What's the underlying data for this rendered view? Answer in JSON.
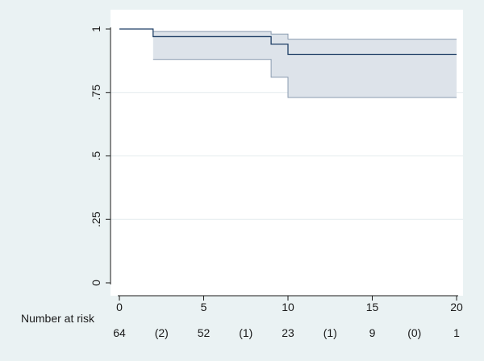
{
  "chart_data": {
    "type": "line",
    "title": "",
    "xlabel": "",
    "ylabel": "",
    "xlim": [
      0,
      20
    ],
    "ylim": [
      0,
      1
    ],
    "x_ticks": [
      "0",
      "5",
      "10",
      "15",
      "20"
    ],
    "y_ticks": [
      "0",
      ".25",
      ".5",
      ".75",
      "1"
    ],
    "grid": true,
    "survival_steps": {
      "x": [
        0,
        2,
        9,
        10,
        20
      ],
      "y": [
        1,
        0.97,
        0.94,
        0.9,
        0.9
      ]
    },
    "confidence_band": {
      "x": [
        2,
        9,
        10,
        20
      ],
      "lower": [
        0.88,
        0.81,
        0.73,
        0.73
      ],
      "upper": [
        0.99,
        0.98,
        0.96,
        0.96
      ]
    },
    "colors": {
      "line": "#1f3f66",
      "band_fill": "#dde3ea",
      "band_edge": "#8a9bb0",
      "plot_bg": "#ffffff",
      "frame_bg": "#eaf2f3",
      "grid": "#e4ecee"
    }
  },
  "risk_table": {
    "label": "Number at risk",
    "values": [
      "64",
      "(2)",
      "52",
      "(1)",
      "23",
      "(1)",
      "9",
      "(0)",
      "1"
    ]
  }
}
